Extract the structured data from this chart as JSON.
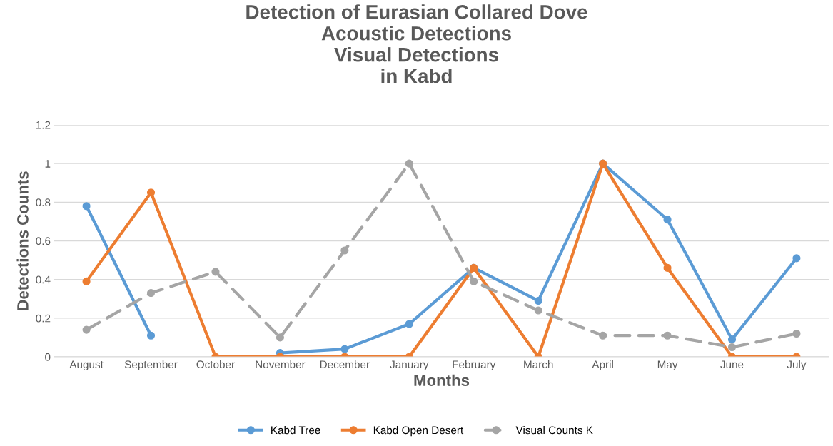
{
  "chart_data": {
    "type": "line",
    "title": "Detection of Eurasian Collared Dove\nAcoustic Detections\nVisual Detections\nin Kabd",
    "xlabel": "Months",
    "ylabel": "Detections Counts",
    "categories": [
      "August",
      "September",
      "October",
      "November",
      "December",
      "January",
      "February",
      "March",
      "April",
      "May",
      "June",
      "July"
    ],
    "series": [
      {
        "name": "Kabd Tree",
        "color": "#5b9bd5",
        "line_style": "solid",
        "values": [
          0.78,
          0.11,
          null,
          0.02,
          0.04,
          0.17,
          0.46,
          0.29,
          1.0,
          0.71,
          0.09,
          0.51
        ]
      },
      {
        "name": "Kabd Open Desert",
        "color": "#ed7d31",
        "line_style": "solid",
        "values": [
          0.39,
          0.85,
          0,
          0,
          0,
          0,
          0.46,
          0,
          1.0,
          0.46,
          0,
          0
        ]
      },
      {
        "name": "Visual Counts K",
        "color": "#a5a5a5",
        "line_style": "dashed",
        "values": [
          0.14,
          0.33,
          0.44,
          0.1,
          0.55,
          1.0,
          0.39,
          0.24,
          0.11,
          0.11,
          0.05,
          0.12
        ]
      }
    ],
    "ylim": [
      0,
      1.2
    ],
    "yticks": [
      {
        "value": 0,
        "label": "0"
      },
      0.2,
      0.4,
      0.6,
      0.8,
      {
        "value": 1,
        "label": "1"
      },
      1.2
    ],
    "grid": "y",
    "legend": "bottom",
    "marker": "circle"
  }
}
